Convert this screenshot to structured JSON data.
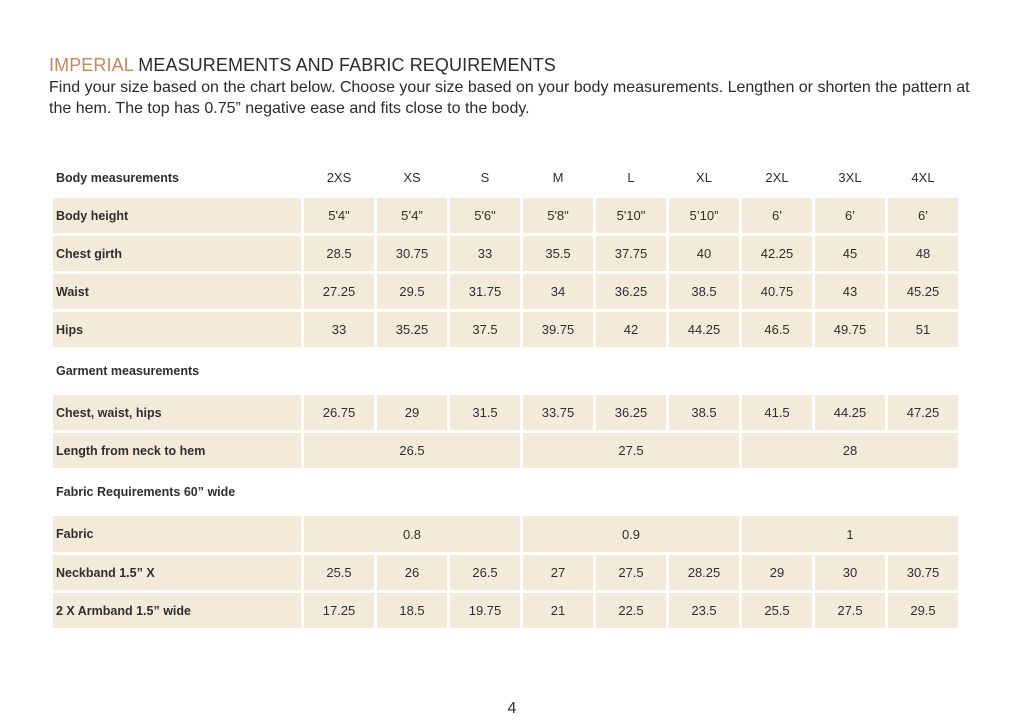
{
  "heading": {
    "accent": "IMPERIAL",
    "rest": " MEASUREMENTS AND FABRIC REQUIREMENTS"
  },
  "intro": "Find your size based on the chart below. Choose your size based on your body measurements. Lengthen or shorten the pattern at the hem. The top has 0.75” negative ease and fits close to the body.",
  "table": {
    "header_label": "Body measurements",
    "sizes": [
      "2XS",
      "XS",
      "S",
      "M",
      "L",
      "XL",
      "2XL",
      "3XL",
      "4XL"
    ],
    "body_rows": [
      {
        "label": "Body height",
        "values": [
          "5'4\"",
          "5’4”",
          "5'6\"",
          "5'8\"",
          "5'10\"",
          "5’10”",
          "6’",
          "6’",
          "6’"
        ]
      },
      {
        "label": "Chest girth",
        "values": [
          "28.5",
          "30.75",
          "33",
          "35.5",
          "37.75",
          "40",
          "42.25",
          "45",
          "48"
        ]
      },
      {
        "label": "Waist",
        "values": [
          "27.25",
          "29.5",
          "31.75",
          "34",
          "36.25",
          "38.5",
          "40.75",
          "43",
          "45.25"
        ]
      },
      {
        "label": "Hips",
        "values": [
          "33",
          "35.25",
          "37.5",
          "39.75",
          "42",
          "44.25",
          "46.5",
          "49.75",
          "51"
        ]
      }
    ],
    "garment_section": "Garment measurements",
    "garment_chest": {
      "label": "Chest, waist, hips",
      "values": [
        "26.75",
        "29",
        "31.5",
        "33.75",
        "36.25",
        "38.5",
        "41.5",
        "44.25",
        "47.25"
      ]
    },
    "garment_length": {
      "label": "Length from neck to hem",
      "groups": [
        "26.5",
        "27.5",
        "28"
      ]
    },
    "fabric_section": "Fabric Requirements 60” wide",
    "fabric": {
      "label": "Fabric",
      "groups": [
        "0.8",
        "0.9",
        "1"
      ]
    },
    "neckband": {
      "label": "Neckband 1.5” X",
      "values": [
        "25.5",
        "26",
        "26.5",
        "27",
        "27.5",
        "28.25",
        "29",
        "30",
        "30.75"
      ]
    },
    "armband": {
      "label": "2 X Armband 1.5” wide",
      "values": [
        "17.25",
        "18.5",
        "19.75",
        "21",
        "22.5",
        "23.5",
        "25.5",
        "27.5",
        "29.5"
      ]
    }
  },
  "page_number": "4"
}
